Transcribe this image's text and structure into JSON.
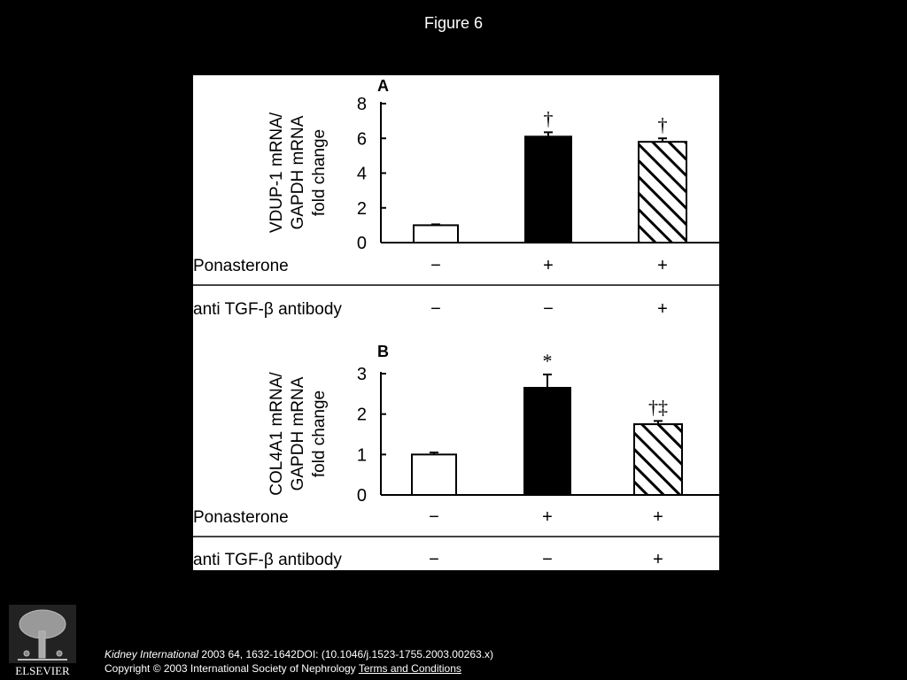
{
  "title": "Figure 6",
  "chart_data": [
    {
      "type": "bar",
      "panel_label": "A",
      "ylabel_lines": [
        "VDUP-1 mRNA/",
        "GAPDH mRNA",
        "fold change"
      ],
      "ylim": [
        0,
        8
      ],
      "yticks": [
        "0",
        "2",
        "4",
        "6",
        "8"
      ],
      "grid": false,
      "bars": [
        {
          "value": 1.0,
          "error": 0.05,
          "fill": "white",
          "annotation": ""
        },
        {
          "value": 6.1,
          "error": 0.25,
          "fill": "black",
          "annotation": "†"
        },
        {
          "value": 5.8,
          "error": 0.2,
          "fill": "hatched",
          "annotation": "†"
        }
      ],
      "conditions": [
        {
          "label": "Ponasterone",
          "marks": [
            "−",
            "+",
            "+"
          ]
        },
        {
          "label": "anti TGF-β antibody",
          "marks": [
            "−",
            "−",
            "+"
          ]
        }
      ]
    },
    {
      "type": "bar",
      "panel_label": "B",
      "ylabel_lines": [
        "COL4A1 mRNA/",
        "GAPDH mRNA",
        "fold change"
      ],
      "ylim": [
        0,
        3
      ],
      "yticks": [
        "0",
        "1",
        "2",
        "3"
      ],
      "grid": false,
      "bars": [
        {
          "value": 1.0,
          "error": 0.05,
          "fill": "white",
          "annotation": ""
        },
        {
          "value": 2.65,
          "error": 0.33,
          "fill": "black",
          "annotation": "*"
        },
        {
          "value": 1.75,
          "error": 0.08,
          "fill": "hatched",
          "annotation": "†‡"
        }
      ],
      "conditions": [
        {
          "label": "Ponasterone",
          "marks": [
            "−",
            "+",
            "+"
          ]
        },
        {
          "label": "anti TGF-β antibody",
          "marks": [
            "−",
            "−",
            "+"
          ]
        }
      ]
    }
  ],
  "footer": {
    "journal": "Kidney International",
    "citation": " 2003 64, 1632-1642DOI: (10.1046/j.1523-1755.2003.00263.x)",
    "copyright": "Copyright © 2003 International Society of Nephrology",
    "terms_link": "Terms and Conditions"
  },
  "logo_text": "ELSEVIER"
}
